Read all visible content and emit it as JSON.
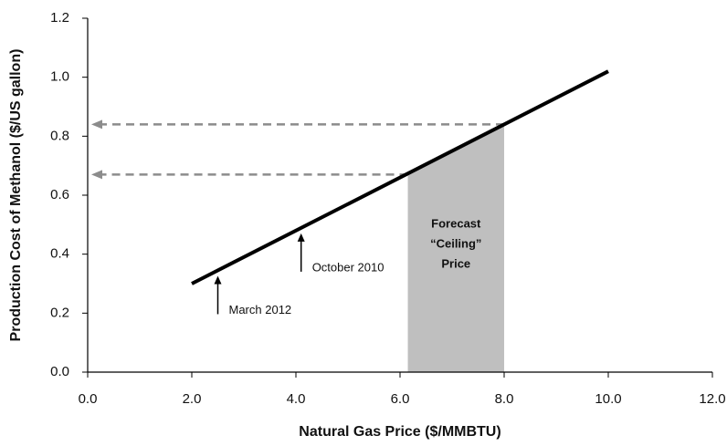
{
  "chart_data": {
    "type": "line",
    "x_label": "Natural Gas Price ($/MMBTU)",
    "y_label": "Production Cost of Methanol ($/US gallon)",
    "series": [
      {
        "color": "#000000",
        "x": [
          2,
          10
        ],
        "values": [
          0.3,
          1.02
        ]
      }
    ],
    "xlim": [
      0,
      12
    ],
    "xticks": [
      {
        "value": 0,
        "label": "0.0"
      },
      {
        "value": 2,
        "label": "2.0"
      },
      {
        "value": 4,
        "label": "4.0"
      },
      {
        "value": 6,
        "label": "6.0"
      },
      {
        "value": 8,
        "label": "8.0"
      },
      {
        "value": 10,
        "label": "10.0"
      },
      {
        "value": 12,
        "label": "12.0"
      }
    ],
    "ylim": [
      0,
      1.2
    ],
    "yticks": [
      {
        "value": 0,
        "label": "0.0"
      },
      0.2,
      0.4,
      0.6,
      0.8,
      {
        "value": 1,
        "label": "1.0"
      },
      1.2
    ],
    "band": {
      "x": [
        6.15,
        8
      ],
      "color": "#bfbfbf",
      "label": [
        "Forecast",
        "“Ceiling”",
        "Price"
      ]
    },
    "reference_lines": [
      {
        "x": 6.15,
        "y": 0.67
      },
      {
        "x": 8,
        "y": 0.84
      }
    ],
    "reference_color": "#8c8c8c",
    "annotations": [
      {
        "text": "March 2012",
        "x": 2.5
      },
      {
        "text": "October 2010",
        "x": 4.1
      }
    ]
  }
}
